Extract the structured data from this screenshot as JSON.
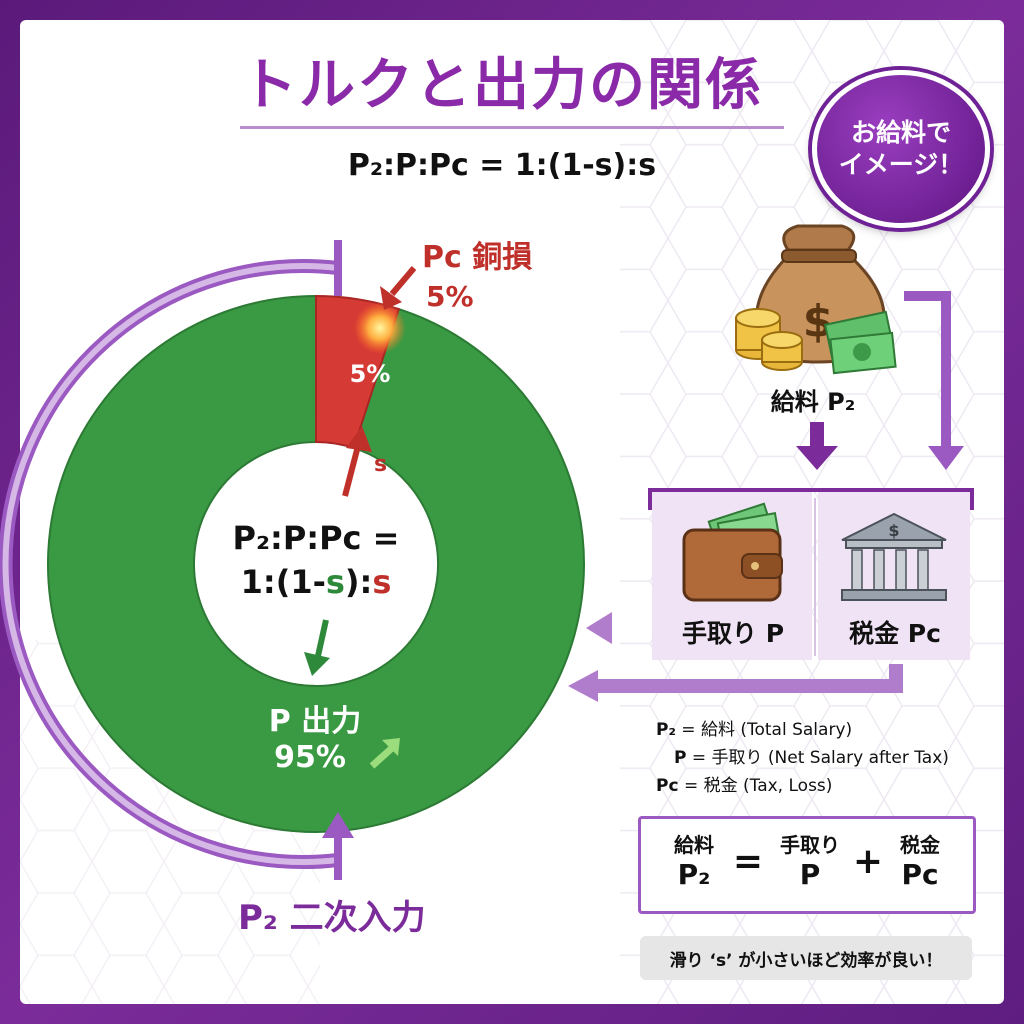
{
  "title": "トルクと出力の関係",
  "badge": {
    "line1": "お給料で",
    "line2": "イメージ！"
  },
  "formula_top": {
    "text": "P₂:P:Pc = 1:(1-s):s"
  },
  "ring": {
    "loss_percent": 5,
    "output_percent": 95,
    "loss_slice_label": "5%",
    "center_line1": "P₂:P:Pc =",
    "center_line2_a": "1:(1-",
    "center_line2_s1": "s",
    "center_line2_b": "):",
    "center_line2_s2": "s",
    "s_arrow_label": "s",
    "output_label": "P 出力",
    "output_percent_label": "95%",
    "copper_loss_label": "Pc 銅損",
    "copper_loss_percent": "5%",
    "input_label": "P₂ 二次入力"
  },
  "salary": {
    "label": "給料 P₂",
    "net_label": "手取り P",
    "tax_label": "税金 Pc"
  },
  "definitions": [
    {
      "sym": "P₂",
      "def": " = 給料 (Total Salary)"
    },
    {
      "sym": "P",
      "def": " = 手取り (Net Salary after Tax)"
    },
    {
      "sym": "Pc",
      "def": " = 税金 (Tax, Loss)"
    }
  ],
  "equation": {
    "a_word": "給料",
    "a_sym": "P₂",
    "eq": "=",
    "b_word": "手取り",
    "b_sym": "P",
    "plus": "+",
    "c_word": "税金",
    "c_sym": "Pc"
  },
  "note": "滑り ‘s’ が小さいほど効率が良い！",
  "colors": {
    "title": "#8a2aa8",
    "green": "#3a9a44",
    "red": "#d63a35",
    "purple": "#9b59c2",
    "loss_text": "#c0302b"
  },
  "icons": [
    "money-bag-icon",
    "coins-icon",
    "cash-stack-icon",
    "wallet-icon",
    "bank-icon"
  ]
}
